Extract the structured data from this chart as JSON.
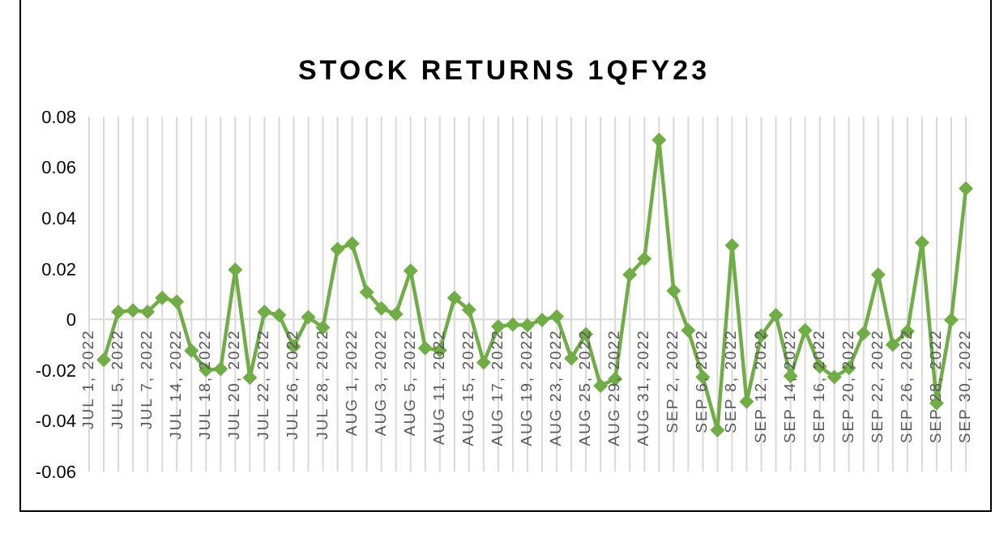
{
  "chart_data": {
    "type": "line",
    "title": "STOCK RETURNS 1QFY23",
    "categories": [
      "JUL 1, 2022",
      null,
      "JUL 5, 2022",
      null,
      "JUL 7, 2022",
      null,
      "JUL 14, 2022",
      null,
      "JUL 18, 2022",
      null,
      "JUL 20, 2022",
      null,
      "JUL 22, 2022",
      null,
      "JUL 26, 2022",
      null,
      "JUL 28, 2022",
      null,
      "AUG 1, 2022",
      null,
      "AUG 3, 2022",
      null,
      "AUG 5, 2022",
      null,
      "AUG 11, 2022",
      null,
      "AUG 15, 2022",
      null,
      "AUG 17, 2022",
      null,
      "AUG 19, 2022",
      null,
      "AUG 23, 2022",
      null,
      "AUG 25, 2022",
      null,
      "AUG 29, 2022",
      null,
      "AUG 31, 2022",
      null,
      "SEP 2, 2022",
      null,
      "SEP 6, 2022",
      null,
      "SEP 8, 2022",
      null,
      "SEP 12, 2022",
      null,
      "SEP 14, 2022",
      null,
      "SEP 16, 2022",
      null,
      "SEP 20, 2022",
      null,
      "SEP 22, 2022",
      null,
      "SEP 26, 2022",
      null,
      "SEP 28, 2022",
      null,
      "SEP 30, 2022"
    ],
    "series": [
      {
        "color": "#70ad47",
        "values": [
          null,
          -0.016,
          0.003,
          0.0035,
          0.003,
          0.0085,
          0.007,
          -0.0124,
          -0.02,
          -0.0196,
          0.0196,
          -0.023,
          0.003,
          0.0017,
          -0.0107,
          0.0009,
          -0.0032,
          0.0277,
          0.0299,
          0.0107,
          0.0043,
          0.0021,
          0.0192,
          -0.0113,
          -0.0122,
          0.0085,
          0.0038,
          -0.017,
          -0.0028,
          -0.0021,
          -0.0023,
          -0.0002,
          0.0011,
          -0.0154,
          -0.0058,
          -0.0262,
          -0.0235,
          0.0177,
          0.0239,
          0.0708,
          0.0113,
          -0.0043,
          -0.0228,
          -0.0437,
          0.0292,
          -0.0324,
          -0.0064,
          0.0017,
          -0.0224,
          -0.0043,
          -0.0186,
          -0.0228,
          -0.0192,
          -0.0055,
          0.0177,
          -0.01,
          -0.0047,
          0.0303,
          -0.0331,
          -0.0002,
          0.0516
        ]
      }
    ],
    "ylim": [
      -0.06,
      0.08
    ],
    "yticks": [
      -0.06,
      -0.04,
      -0.02,
      0,
      0.02,
      0.04,
      0.06,
      0.08
    ],
    "grid": "x",
    "marker": "diamond",
    "line_style": "solid"
  }
}
